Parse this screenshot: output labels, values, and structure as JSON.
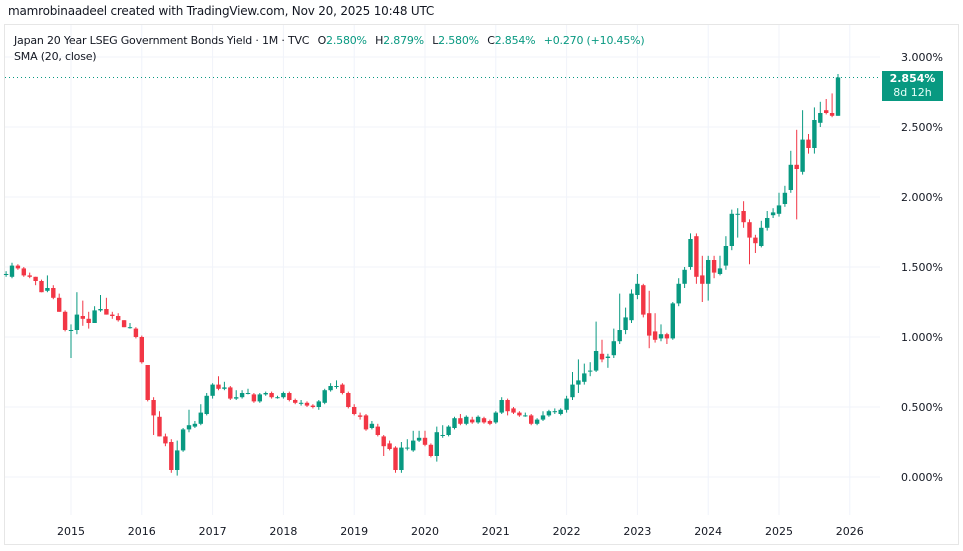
{
  "header": {
    "credit": "mamrobinaadeel created with TradingView.com, Nov 20, 2025 10:48 UTC"
  },
  "legend": {
    "symbol": "Japan 20 Year LSEG Government Bonds Yield · 1M · TVC",
    "o_label": "O",
    "o_value": "2.580%",
    "h_label": "H",
    "h_value": "2.879%",
    "l_label": "L",
    "l_value": "2.580%",
    "c_label": "C",
    "c_value": "2.854%",
    "change": "+0.270 (+10.45%)",
    "indicator": "SMA (20, close)"
  },
  "price_tag": {
    "price": "2.854%",
    "countdown": "8d 12h"
  },
  "colors": {
    "up": "#089981",
    "down": "#f23645",
    "grid": "#f0f3fa",
    "text": "#131722"
  },
  "chart_data": {
    "type": "candlestick",
    "title": "Japan 20 Year LSEG Government Bonds Yield",
    "interval": "1M",
    "source": "TVC",
    "ylim": [
      -0.27,
      3.24
    ],
    "y_ticks": [
      {
        "value": 0.0,
        "label": "0.000%"
      },
      {
        "value": 0.5,
        "label": "0.500%"
      },
      {
        "value": 1.0,
        "label": "1.000%"
      },
      {
        "value": 1.5,
        "label": "1.500%"
      },
      {
        "value": 2.0,
        "label": "2.000%"
      },
      {
        "value": 2.5,
        "label": "2.500%"
      },
      {
        "value": 3.0,
        "label": "3.000%"
      }
    ],
    "x_ticks": [
      "2015",
      "2016",
      "2017",
      "2018",
      "2019",
      "2020",
      "2021",
      "2022",
      "2023",
      "2024",
      "2025",
      "2026"
    ],
    "grid": true,
    "last_price": 2.854,
    "candle_fields": [
      "month",
      "open",
      "high",
      "low",
      "close"
    ],
    "candles": [
      [
        "2014-02",
        1.45,
        1.47,
        1.43,
        1.45
      ],
      [
        "2014-03",
        1.43,
        1.53,
        1.42,
        1.51
      ],
      [
        "2014-04",
        1.51,
        1.52,
        1.48,
        1.49
      ],
      [
        "2014-05",
        1.49,
        1.5,
        1.43,
        1.44
      ],
      [
        "2014-06",
        1.44,
        1.46,
        1.42,
        1.43
      ],
      [
        "2014-07",
        1.43,
        1.43,
        1.37,
        1.4
      ],
      [
        "2014-08",
        1.4,
        1.41,
        1.32,
        1.32
      ],
      [
        "2014-09",
        1.33,
        1.44,
        1.32,
        1.35
      ],
      [
        "2014-10",
        1.35,
        1.37,
        1.27,
        1.28
      ],
      [
        "2014-11",
        1.28,
        1.31,
        1.18,
        1.18
      ],
      [
        "2014-12",
        1.18,
        1.19,
        1.04,
        1.05
      ],
      [
        "2015-01",
        1.05,
        1.09,
        0.85,
        1.05
      ],
      [
        "2015-02",
        1.05,
        1.32,
        1.02,
        1.16
      ],
      [
        "2015-03",
        1.15,
        1.26,
        1.08,
        1.13
      ],
      [
        "2015-04",
        1.13,
        1.18,
        1.06,
        1.1
      ],
      [
        "2015-05",
        1.1,
        1.22,
        1.1,
        1.19
      ],
      [
        "2015-06",
        1.19,
        1.3,
        1.18,
        1.2
      ],
      [
        "2015-07",
        1.2,
        1.28,
        1.16,
        1.16
      ],
      [
        "2015-08",
        1.16,
        1.18,
        1.13,
        1.15
      ],
      [
        "2015-09",
        1.15,
        1.17,
        1.11,
        1.12
      ],
      [
        "2015-10",
        1.12,
        1.12,
        1.07,
        1.07
      ],
      [
        "2015-11",
        1.07,
        1.1,
        1.06,
        1.07
      ],
      [
        "2015-12",
        1.06,
        1.07,
        0.99,
        1.0
      ],
      [
        "2016-01",
        1.0,
        1.01,
        0.81,
        0.82
      ],
      [
        "2016-02",
        0.8,
        0.8,
        0.54,
        0.55
      ],
      [
        "2016-03",
        0.55,
        0.57,
        0.3,
        0.44
      ],
      [
        "2016-04",
        0.43,
        0.47,
        0.29,
        0.29
      ],
      [
        "2016-05",
        0.29,
        0.31,
        0.22,
        0.24
      ],
      [
        "2016-06",
        0.25,
        0.27,
        0.03,
        0.05
      ],
      [
        "2016-07",
        0.05,
        0.26,
        0.01,
        0.19
      ],
      [
        "2016-08",
        0.19,
        0.35,
        0.18,
        0.34
      ],
      [
        "2016-09",
        0.34,
        0.48,
        0.32,
        0.37
      ],
      [
        "2016-10",
        0.36,
        0.4,
        0.35,
        0.38
      ],
      [
        "2016-11",
        0.38,
        0.52,
        0.37,
        0.46
      ],
      [
        "2016-12",
        0.45,
        0.6,
        0.44,
        0.58
      ],
      [
        "2017-01",
        0.58,
        0.67,
        0.56,
        0.66
      ],
      [
        "2017-02",
        0.66,
        0.72,
        0.62,
        0.63
      ],
      [
        "2017-03",
        0.63,
        0.68,
        0.62,
        0.64
      ],
      [
        "2017-04",
        0.64,
        0.65,
        0.55,
        0.56
      ],
      [
        "2017-05",
        0.56,
        0.62,
        0.55,
        0.57
      ],
      [
        "2017-06",
        0.57,
        0.62,
        0.56,
        0.6
      ],
      [
        "2017-07",
        0.6,
        0.63,
        0.59,
        0.6
      ],
      [
        "2017-08",
        0.59,
        0.6,
        0.53,
        0.54
      ],
      [
        "2017-09",
        0.54,
        0.6,
        0.53,
        0.59
      ],
      [
        "2017-10",
        0.59,
        0.61,
        0.58,
        0.6
      ],
      [
        "2017-11",
        0.6,
        0.61,
        0.56,
        0.57
      ],
      [
        "2017-12",
        0.57,
        0.58,
        0.56,
        0.57
      ],
      [
        "2018-01",
        0.57,
        0.61,
        0.56,
        0.6
      ],
      [
        "2018-02",
        0.6,
        0.61,
        0.54,
        0.55
      ],
      [
        "2018-03",
        0.55,
        0.56,
        0.52,
        0.53
      ],
      [
        "2018-04",
        0.53,
        0.55,
        0.51,
        0.53
      ],
      [
        "2018-05",
        0.53,
        0.54,
        0.5,
        0.51
      ],
      [
        "2018-06",
        0.51,
        0.52,
        0.49,
        0.5
      ],
      [
        "2018-07",
        0.5,
        0.55,
        0.48,
        0.54
      ],
      [
        "2018-08",
        0.53,
        0.63,
        0.52,
        0.62
      ],
      [
        "2018-09",
        0.62,
        0.67,
        0.61,
        0.65
      ],
      [
        "2018-10",
        0.65,
        0.69,
        0.63,
        0.65
      ],
      [
        "2018-11",
        0.66,
        0.67,
        0.59,
        0.6
      ],
      [
        "2018-12",
        0.6,
        0.61,
        0.49,
        0.5
      ],
      [
        "2019-01",
        0.5,
        0.52,
        0.44,
        0.45
      ],
      [
        "2019-02",
        0.44,
        0.46,
        0.41,
        0.43
      ],
      [
        "2019-03",
        0.44,
        0.45,
        0.33,
        0.34
      ],
      [
        "2019-04",
        0.35,
        0.4,
        0.34,
        0.38
      ],
      [
        "2019-05",
        0.36,
        0.38,
        0.29,
        0.3
      ],
      [
        "2019-06",
        0.29,
        0.3,
        0.15,
        0.22
      ],
      [
        "2019-07",
        0.24,
        0.26,
        0.19,
        0.2
      ],
      [
        "2019-08",
        0.21,
        0.22,
        0.03,
        0.05
      ],
      [
        "2019-09",
        0.05,
        0.25,
        0.03,
        0.21
      ],
      [
        "2019-10",
        0.21,
        0.27,
        0.19,
        0.21
      ],
      [
        "2019-11",
        0.19,
        0.33,
        0.18,
        0.26
      ],
      [
        "2019-12",
        0.26,
        0.33,
        0.25,
        0.28
      ],
      [
        "2020-01",
        0.28,
        0.33,
        0.22,
        0.23
      ],
      [
        "2020-02",
        0.23,
        0.24,
        0.14,
        0.15
      ],
      [
        "2020-03",
        0.15,
        0.36,
        0.11,
        0.32
      ],
      [
        "2020-04",
        0.3,
        0.37,
        0.28,
        0.3
      ],
      [
        "2020-05",
        0.3,
        0.37,
        0.29,
        0.36
      ],
      [
        "2020-06",
        0.35,
        0.43,
        0.34,
        0.42
      ],
      [
        "2020-07",
        0.42,
        0.45,
        0.37,
        0.38
      ],
      [
        "2020-08",
        0.38,
        0.44,
        0.37,
        0.43
      ],
      [
        "2020-09",
        0.41,
        0.43,
        0.38,
        0.39
      ],
      [
        "2020-10",
        0.39,
        0.44,
        0.38,
        0.43
      ],
      [
        "2020-11",
        0.42,
        0.43,
        0.38,
        0.39
      ],
      [
        "2020-12",
        0.4,
        0.41,
        0.37,
        0.38
      ],
      [
        "2021-01",
        0.39,
        0.47,
        0.38,
        0.46
      ],
      [
        "2021-02",
        0.46,
        0.57,
        0.45,
        0.55
      ],
      [
        "2021-03",
        0.55,
        0.56,
        0.44,
        0.47
      ],
      [
        "2021-04",
        0.49,
        0.5,
        0.45,
        0.46
      ],
      [
        "2021-05",
        0.46,
        0.47,
        0.43,
        0.44
      ],
      [
        "2021-06",
        0.44,
        0.46,
        0.43,
        0.44
      ],
      [
        "2021-07",
        0.44,
        0.45,
        0.37,
        0.38
      ],
      [
        "2021-08",
        0.38,
        0.42,
        0.37,
        0.41
      ],
      [
        "2021-09",
        0.41,
        0.47,
        0.4,
        0.44
      ],
      [
        "2021-10",
        0.44,
        0.48,
        0.43,
        0.47
      ],
      [
        "2021-11",
        0.47,
        0.49,
        0.45,
        0.47
      ],
      [
        "2021-12",
        0.45,
        0.49,
        0.44,
        0.48
      ],
      [
        "2022-01",
        0.48,
        0.58,
        0.46,
        0.56
      ],
      [
        "2022-02",
        0.57,
        0.75,
        0.55,
        0.66
      ],
      [
        "2022-03",
        0.66,
        0.84,
        0.6,
        0.69
      ],
      [
        "2022-04",
        0.68,
        0.81,
        0.66,
        0.74
      ],
      [
        "2022-05",
        0.76,
        0.82,
        0.72,
        0.76
      ],
      [
        "2022-06",
        0.76,
        1.11,
        0.75,
        0.9
      ],
      [
        "2022-07",
        0.88,
        0.98,
        0.82,
        0.84
      ],
      [
        "2022-08",
        0.85,
        0.88,
        0.78,
        0.86
      ],
      [
        "2022-09",
        0.87,
        1.06,
        0.85,
        0.97
      ],
      [
        "2022-10",
        0.97,
        1.31,
        0.95,
        1.05
      ],
      [
        "2022-11",
        1.05,
        1.21,
        1.02,
        1.14
      ],
      [
        "2022-12",
        1.12,
        1.34,
        1.1,
        1.31
      ],
      [
        "2023-01",
        1.3,
        1.45,
        1.27,
        1.38
      ],
      [
        "2023-02",
        1.37,
        1.38,
        1.14,
        1.16
      ],
      [
        "2023-03",
        1.17,
        1.33,
        0.92,
        1.01
      ],
      [
        "2023-04",
        1.04,
        1.17,
        0.96,
        0.98
      ],
      [
        "2023-05",
        0.99,
        1.09,
        0.97,
        1.02
      ],
      [
        "2023-06",
        1.02,
        1.03,
        0.95,
        0.99
      ],
      [
        "2023-07",
        0.99,
        1.25,
        0.98,
        1.24
      ],
      [
        "2023-08",
        1.24,
        1.42,
        1.22,
        1.38
      ],
      [
        "2023-09",
        1.38,
        1.5,
        1.35,
        1.48
      ],
      [
        "2023-10",
        1.5,
        1.74,
        1.48,
        1.7
      ],
      [
        "2023-11",
        1.72,
        1.74,
        1.38,
        1.43
      ],
      [
        "2023-12",
        1.44,
        1.58,
        1.25,
        1.38
      ],
      [
        "2024-01",
        1.38,
        1.58,
        1.26,
        1.55
      ],
      [
        "2024-02",
        1.55,
        1.58,
        1.42,
        1.46
      ],
      [
        "2024-03",
        1.45,
        1.58,
        1.44,
        1.49
      ],
      [
        "2024-04",
        1.51,
        1.72,
        1.48,
        1.65
      ],
      [
        "2024-05",
        1.65,
        1.91,
        1.62,
        1.88
      ],
      [
        "2024-06",
        1.88,
        1.92,
        1.71,
        1.88
      ],
      [
        "2024-07",
        1.9,
        1.97,
        1.78,
        1.82
      ],
      [
        "2024-08",
        1.82,
        1.84,
        1.52,
        1.71
      ],
      [
        "2024-09",
        1.71,
        1.73,
        1.6,
        1.67
      ],
      [
        "2024-10",
        1.65,
        1.83,
        1.64,
        1.78
      ],
      [
        "2024-11",
        1.78,
        1.9,
        1.76,
        1.85
      ],
      [
        "2024-12",
        1.87,
        1.92,
        1.85,
        1.89
      ],
      [
        "2025-01",
        1.88,
        2.03,
        1.86,
        1.94
      ],
      [
        "2025-02",
        1.95,
        2.08,
        1.93,
        2.03
      ],
      [
        "2025-03",
        2.05,
        2.33,
        2.03,
        2.23
      ],
      [
        "2025-04",
        2.23,
        2.48,
        1.84,
        2.2
      ],
      [
        "2025-05",
        2.18,
        2.62,
        2.16,
        2.41
      ],
      [
        "2025-06",
        2.41,
        2.45,
        2.31,
        2.35
      ],
      [
        "2025-07",
        2.35,
        2.64,
        2.31,
        2.55
      ],
      [
        "2025-08",
        2.53,
        2.68,
        2.5,
        2.6
      ],
      [
        "2025-09",
        2.62,
        2.7,
        2.59,
        2.6
      ],
      [
        "2025-10",
        2.6,
        2.74,
        2.57,
        2.58
      ],
      [
        "2025-11",
        2.58,
        2.879,
        2.58,
        2.854
      ]
    ]
  }
}
